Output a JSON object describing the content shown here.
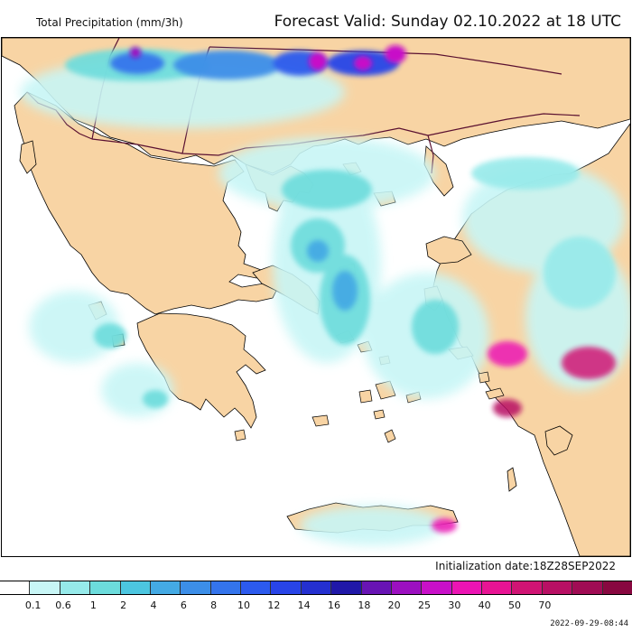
{
  "header": {
    "left_title": "Total Precipitation (mm/3h)",
    "right_title": "Forecast Valid:  Sunday 02.10.2022 at 18 UTC"
  },
  "footer": {
    "init_label": "Initialization date:18Z28SEP2022",
    "timestamp": "2022-09-29-08:44"
  },
  "colors": {
    "land": "#f8d4a4",
    "sea": "#ffffff",
    "border": "#5a1030",
    "coast": "#000000"
  },
  "legend": {
    "bins": [
      {
        "color": "#ffffff"
      },
      {
        "color": "#c8f6f6"
      },
      {
        "color": "#96eaea"
      },
      {
        "color": "#6cdcdc"
      },
      {
        "color": "#4cc6e0"
      },
      {
        "color": "#44aae4"
      },
      {
        "color": "#3c8ee8"
      },
      {
        "color": "#3474ec"
      },
      {
        "color": "#2c5aee"
      },
      {
        "color": "#2844e8"
      },
      {
        "color": "#2430d0"
      },
      {
        "color": "#2018a8"
      },
      {
        "color": "#6814b4"
      },
      {
        "color": "#9c10c0"
      },
      {
        "color": "#c810c8"
      },
      {
        "color": "#ec14b4"
      },
      {
        "color": "#e81494"
      },
      {
        "color": "#d01474"
      },
      {
        "color": "#b81064"
      },
      {
        "color": "#a00c54"
      },
      {
        "color": "#880840"
      }
    ],
    "ticks": [
      "0.1",
      "0.6",
      "1",
      "2",
      "4",
      "6",
      "8",
      "10",
      "12",
      "14",
      "16",
      "18",
      "20",
      "25",
      "30",
      "40",
      "50",
      "70"
    ]
  }
}
